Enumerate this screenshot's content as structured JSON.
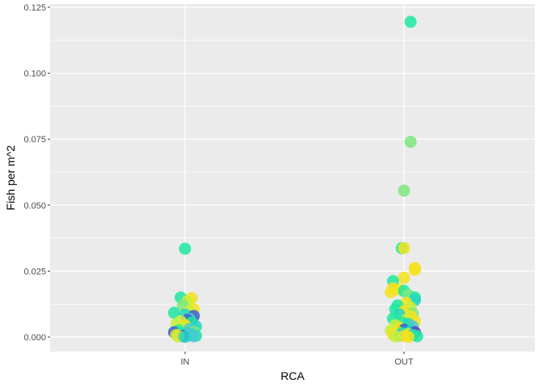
{
  "chart_data": {
    "type": "scatter",
    "title": "",
    "xlabel": "RCA",
    "ylabel": "Fish per m^2",
    "categories": [
      "IN",
      "OUT"
    ],
    "ylim": [
      -0.0025,
      0.125
    ],
    "yticks": [
      0.0,
      0.025,
      0.05,
      0.075,
      0.1,
      0.125
    ],
    "ytick_labels": [
      "0.000",
      "0.025",
      "0.050",
      "0.075",
      "0.100",
      "0.125"
    ],
    "grid": true,
    "legend": "none",
    "colors": {
      "panel": "#ebebeb",
      "grid_major": "#ffffff",
      "palette": [
        "#1de9a0",
        "#f5e21c",
        "#c8f03c",
        "#7ee87e",
        "#4cc8d2",
        "#3b5fd6",
        "#24d4c4",
        "#f7c81e",
        "#5a3fc8"
      ]
    },
    "series": [
      {
        "category": "IN",
        "points": [
          {
            "y": 0.0335,
            "dx": 0.0,
            "c": 0
          },
          {
            "y": 0.015,
            "dx": -0.02,
            "c": 0
          },
          {
            "y": 0.0148,
            "dx": 0.03,
            "c": 1
          },
          {
            "y": 0.0135,
            "dx": 0.01,
            "c": 2
          },
          {
            "y": 0.012,
            "dx": -0.01,
            "c": 3
          },
          {
            "y": 0.0105,
            "dx": 0.04,
            "c": 1
          },
          {
            "y": 0.0098,
            "dx": 0.02,
            "c": 2
          },
          {
            "y": 0.0092,
            "dx": -0.05,
            "c": 0
          },
          {
            "y": 0.0085,
            "dx": 0.0,
            "c": 6
          },
          {
            "y": 0.008,
            "dx": 0.04,
            "c": 5
          },
          {
            "y": 0.007,
            "dx": 0.02,
            "c": 4
          },
          {
            "y": 0.0065,
            "dx": 0.01,
            "c": 5
          },
          {
            "y": 0.006,
            "dx": -0.02,
            "c": 2
          },
          {
            "y": 0.0055,
            "dx": 0.03,
            "c": 0
          },
          {
            "y": 0.005,
            "dx": -0.04,
            "c": 2
          },
          {
            "y": 0.0045,
            "dx": 0.0,
            "c": 1
          },
          {
            "y": 0.004,
            "dx": 0.05,
            "c": 6
          },
          {
            "y": 0.0035,
            "dx": -0.01,
            "c": 2
          },
          {
            "y": 0.003,
            "dx": 0.02,
            "c": 4
          },
          {
            "y": 0.0025,
            "dx": -0.03,
            "c": 0
          },
          {
            "y": 0.002,
            "dx": 0.04,
            "c": 3
          },
          {
            "y": 0.0018,
            "dx": -0.05,
            "c": 5
          },
          {
            "y": 0.0015,
            "dx": 0.01,
            "c": 4
          },
          {
            "y": 0.0012,
            "dx": -0.02,
            "c": 0
          },
          {
            "y": 0.001,
            "dx": 0.03,
            "c": 6
          },
          {
            "y": 0.0008,
            "dx": -0.04,
            "c": 1
          },
          {
            "y": 0.0006,
            "dx": 0.02,
            "c": 4
          },
          {
            "y": 0.0005,
            "dx": 0.05,
            "c": 0
          },
          {
            "y": 0.0004,
            "dx": -0.01,
            "c": 8
          },
          {
            "y": 0.0003,
            "dx": 0.04,
            "c": 4
          },
          {
            "y": 0.0002,
            "dx": -0.03,
            "c": 2
          },
          {
            "y": 0.0001,
            "dx": 0.0,
            "c": 6
          }
        ]
      },
      {
        "category": "OUT",
        "points": [
          {
            "y": 0.1195,
            "dx": 0.03,
            "c": 0
          },
          {
            "y": 0.074,
            "dx": 0.03,
            "c": 3
          },
          {
            "y": 0.0555,
            "dx": 0.0,
            "c": 3
          },
          {
            "y": 0.0337,
            "dx": -0.01,
            "c": 0
          },
          {
            "y": 0.0337,
            "dx": 0.0,
            "c": 1
          },
          {
            "y": 0.0262,
            "dx": 0.05,
            "c": 1
          },
          {
            "y": 0.0255,
            "dx": 0.05,
            "c": 1
          },
          {
            "y": 0.0225,
            "dx": 0.0,
            "c": 1
          },
          {
            "y": 0.0212,
            "dx": -0.05,
            "c": 0
          },
          {
            "y": 0.0185,
            "dx": -0.05,
            "c": 1
          },
          {
            "y": 0.018,
            "dx": -0.02,
            "c": 1
          },
          {
            "y": 0.0175,
            "dx": 0.0,
            "c": 0
          },
          {
            "y": 0.017,
            "dx": -0.06,
            "c": 1
          },
          {
            "y": 0.016,
            "dx": 0.02,
            "c": 3
          },
          {
            "y": 0.015,
            "dx": 0.05,
            "c": 0
          },
          {
            "y": 0.014,
            "dx": 0.05,
            "c": 6
          },
          {
            "y": 0.013,
            "dx": 0.01,
            "c": 1
          },
          {
            "y": 0.012,
            "dx": -0.03,
            "c": 0
          },
          {
            "y": 0.0112,
            "dx": 0.03,
            "c": 2
          },
          {
            "y": 0.0105,
            "dx": -0.04,
            "c": 0
          },
          {
            "y": 0.0098,
            "dx": 0.0,
            "c": 1
          },
          {
            "y": 0.009,
            "dx": 0.04,
            "c": 3
          },
          {
            "y": 0.0085,
            "dx": -0.02,
            "c": 6
          },
          {
            "y": 0.008,
            "dx": 0.03,
            "c": 1
          },
          {
            "y": 0.007,
            "dx": -0.05,
            "c": 0
          },
          {
            "y": 0.0065,
            "dx": 0.01,
            "c": 2
          },
          {
            "y": 0.006,
            "dx": 0.05,
            "c": 1
          },
          {
            "y": 0.0055,
            "dx": -0.01,
            "c": 0
          },
          {
            "y": 0.005,
            "dx": 0.02,
            "c": 6
          },
          {
            "y": 0.0045,
            "dx": -0.04,
            "c": 2
          },
          {
            "y": 0.004,
            "dx": 0.04,
            "c": 4
          },
          {
            "y": 0.0035,
            "dx": -0.02,
            "c": 1
          },
          {
            "y": 0.003,
            "dx": 0.01,
            "c": 0
          },
          {
            "y": 0.0028,
            "dx": 0.0,
            "c": 5
          },
          {
            "y": 0.0025,
            "dx": -0.06,
            "c": 2
          },
          {
            "y": 0.0022,
            "dx": 0.03,
            "c": 6
          },
          {
            "y": 0.002,
            "dx": -0.03,
            "c": 1
          },
          {
            "y": 0.0018,
            "dx": 0.05,
            "c": 8
          },
          {
            "y": 0.0015,
            "dx": -0.01,
            "c": 0
          },
          {
            "y": 0.0012,
            "dx": 0.02,
            "c": 2
          },
          {
            "y": 0.001,
            "dx": -0.05,
            "c": 1
          },
          {
            "y": 0.0008,
            "dx": 0.04,
            "c": 6
          },
          {
            "y": 0.0006,
            "dx": -0.02,
            "c": 4
          },
          {
            "y": 0.0004,
            "dx": 0.0,
            "c": 1
          },
          {
            "y": 0.0003,
            "dx": 0.06,
            "c": 0
          },
          {
            "y": 0.0002,
            "dx": -0.04,
            "c": 2
          },
          {
            "y": 0.0001,
            "dx": 0.02,
            "c": 1
          }
        ]
      }
    ]
  }
}
